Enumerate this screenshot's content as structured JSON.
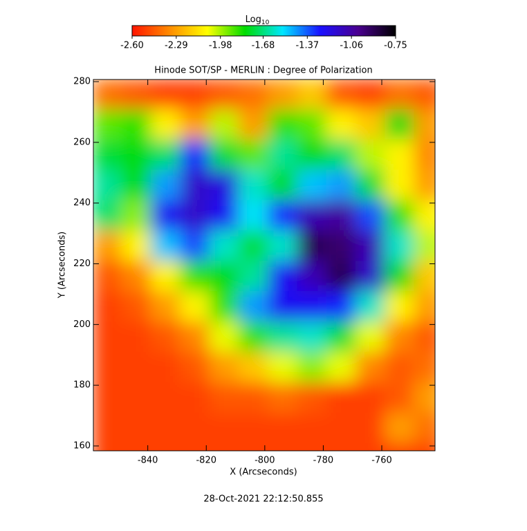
{
  "chart_data": {
    "type": "heatmap",
    "title": "Hinode SOT/SP - MERLIN : Degree of Polarization",
    "x_label": "X (Arcseconds)",
    "y_label": "Y (Arcseconds)",
    "footer": "28-Oct-2021 22:12:50.855",
    "colorbar_label": "Log",
    "colorbar_label_sub": "10",
    "clim": [
      -2.6,
      -0.75
    ],
    "colorbar_ticks": [
      {
        "value": -2.6,
        "label": "-2.60"
      },
      {
        "value": -2.29,
        "label": "-2.29"
      },
      {
        "value": -1.98,
        "label": "-1.98"
      },
      {
        "value": -1.68,
        "label": "-1.68"
      },
      {
        "value": -1.37,
        "label": "-1.37"
      },
      {
        "value": -1.06,
        "label": "-1.06"
      },
      {
        "value": -0.75,
        "label": "-0.75"
      }
    ],
    "colormap": [
      "#ff1400",
      "#ff8c00",
      "#ffff00",
      "#00dc00",
      "#00e6ff",
      "#1a10ff",
      "#4a0090",
      "#000000"
    ],
    "xlim": [
      -858.6,
      -741.8
    ],
    "ylim": [
      158.4,
      280.7
    ],
    "xticks": [
      -840,
      -820,
      -800,
      -780,
      -760
    ],
    "yticks": [
      160,
      180,
      200,
      220,
      240,
      260,
      280
    ],
    "x": [
      -854,
      -844,
      -834,
      -824,
      -814,
      -804,
      -794,
      -784,
      -774,
      -764,
      -754,
      -744
    ],
    "y": [
      276,
      266,
      256,
      246,
      236,
      226,
      216,
      206,
      196,
      186,
      176,
      166,
      156
    ],
    "values": [
      [
        -2.4,
        -2.45,
        -2.5,
        -2.5,
        -2.45,
        -2.4,
        -2.3,
        -2.2,
        -2.45,
        -2.5,
        -2.4,
        -2.45
      ],
      [
        -1.9,
        -1.85,
        -2.1,
        -2.3,
        -2.0,
        -2.3,
        -1.85,
        -1.9,
        -2.1,
        -2.2,
        -1.8,
        -2.3
      ],
      [
        -1.75,
        -1.8,
        -1.7,
        -1.3,
        -1.75,
        -1.9,
        -1.65,
        -1.8,
        -1.7,
        -2.0,
        -2.1,
        -2.35
      ],
      [
        -1.65,
        -1.8,
        -1.45,
        -1.15,
        -1.2,
        -1.6,
        -1.8,
        -1.5,
        -1.45,
        -1.75,
        -2.1,
        -2.3
      ],
      [
        -1.7,
        -1.95,
        -1.25,
        -1.15,
        -1.25,
        -1.55,
        -1.3,
        -1.1,
        -1.05,
        -1.35,
        -1.85,
        -2.1
      ],
      [
        -2.3,
        -2.1,
        -1.5,
        -1.35,
        -1.6,
        -1.75,
        -1.6,
        -0.9,
        -0.95,
        -1.1,
        -1.6,
        -2.0
      ],
      [
        -2.45,
        -2.35,
        -2.1,
        -1.85,
        -1.8,
        -1.65,
        -1.25,
        -1.1,
        -0.9,
        -1.15,
        -1.8,
        -2.2
      ],
      [
        -2.5,
        -2.45,
        -2.3,
        -2.1,
        -1.85,
        -1.45,
        -1.25,
        -1.25,
        -1.3,
        -1.6,
        -2.1,
        -2.3
      ],
      [
        -2.5,
        -2.5,
        -2.45,
        -2.35,
        -2.05,
        -1.85,
        -1.65,
        -1.6,
        -1.75,
        -2.05,
        -2.35,
        -2.45
      ],
      [
        -2.5,
        -2.5,
        -2.5,
        -2.45,
        -2.3,
        -2.2,
        -2.05,
        -1.95,
        -2.05,
        -2.35,
        -2.45,
        -2.4
      ],
      [
        -2.5,
        -2.5,
        -2.5,
        -2.5,
        -2.45,
        -2.45,
        -2.4,
        -2.45,
        -2.5,
        -2.5,
        -2.45,
        -2.3
      ],
      [
        -2.5,
        -2.5,
        -2.5,
        -2.5,
        -2.5,
        -2.5,
        -2.5,
        -2.5,
        -2.5,
        -2.5,
        -2.3,
        -2.4
      ],
      [
        -2.5,
        -2.5,
        -2.5,
        -2.5,
        -2.5,
        -2.5,
        -2.5,
        -2.5,
        -2.5,
        -2.5,
        -2.5,
        -2.5
      ]
    ]
  }
}
